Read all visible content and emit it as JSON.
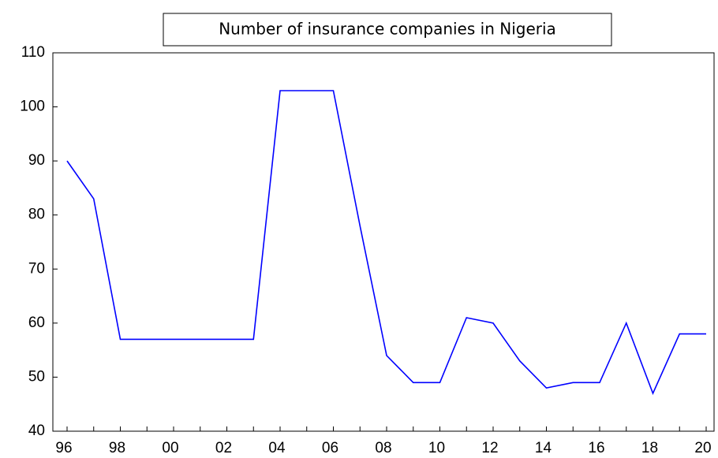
{
  "chart_data": {
    "type": "line",
    "title": "Number of insurance companies in Nigeria",
    "categories": [
      "96",
      null,
      "98",
      null,
      "00",
      null,
      "02",
      null,
      "04",
      null,
      "06",
      null,
      "08",
      null,
      "10",
      null,
      "12",
      null,
      "14",
      null,
      "16",
      null,
      "18",
      null,
      "20"
    ],
    "series": [
      {
        "color": "#0000ff",
        "values": [
          90,
          83,
          57,
          57,
          57,
          57,
          57,
          57,
          103,
          103,
          103,
          78,
          54,
          49,
          49,
          61,
          60,
          53,
          48,
          49,
          49,
          60,
          47,
          58,
          58
        ]
      }
    ],
    "ylim": [
      40,
      110
    ],
    "yticks": [
      40,
      50,
      60,
      70,
      80,
      90,
      100,
      110
    ]
  }
}
